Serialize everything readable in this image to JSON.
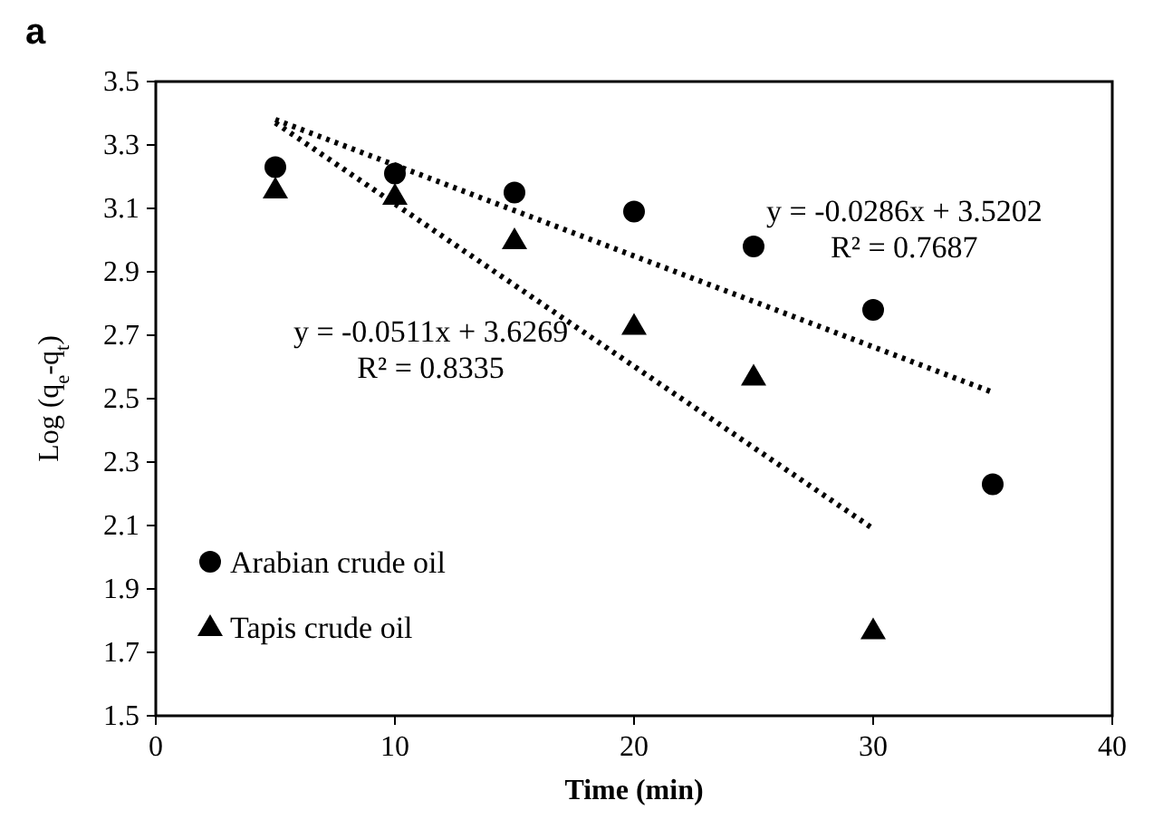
{
  "chart_data": {
    "type": "scatter",
    "title": "a",
    "xlabel": "Time (min)",
    "ylabel": "Log (q$_{e}$-q$_{t}$)",
    "xlim": [
      0,
      40
    ],
    "xticks": [
      0,
      10,
      20,
      30,
      40
    ],
    "ylim": [
      1.5,
      3.5
    ],
    "yticks": [
      1.5,
      1.7,
      1.9,
      2.1,
      2.3,
      2.5,
      2.7,
      2.9,
      3.1,
      3.3,
      3.5
    ],
    "legend": "bottom left",
    "grid": false,
    "series": [
      {
        "name": "Arabian crude oil",
        "color": "#000000",
        "marker": "circle",
        "x": [
          5,
          10,
          15,
          20,
          25,
          30,
          35
        ],
        "values": [
          3.23,
          3.21,
          3.15,
          3.09,
          2.98,
          2.78,
          2.23
        ]
      },
      {
        "name": "Tapis crude oil",
        "color": "#000000",
        "marker": "triangle",
        "x": [
          5,
          10,
          15,
          20,
          25,
          30
        ],
        "values": [
          3.16,
          3.14,
          3.0,
          2.73,
          2.57,
          1.77
        ]
      },
      {
        "type": "line",
        "color": "#000000",
        "marker": "none",
        "line_style": "dotted",
        "x": [
          5,
          35
        ],
        "values": [
          3.38,
          2.52
        ]
      },
      {
        "type": "line",
        "color": "#000000",
        "marker": "none",
        "line_style": "dotted",
        "x": [
          5,
          30
        ],
        "values": [
          3.37,
          2.09
        ]
      }
    ],
    "annotations": [
      "y = -0.0286x + 3.5202\nR² = 0.7687",
      "y = -0.0511x + 3.6269\nR² = 0.8335"
    ]
  }
}
